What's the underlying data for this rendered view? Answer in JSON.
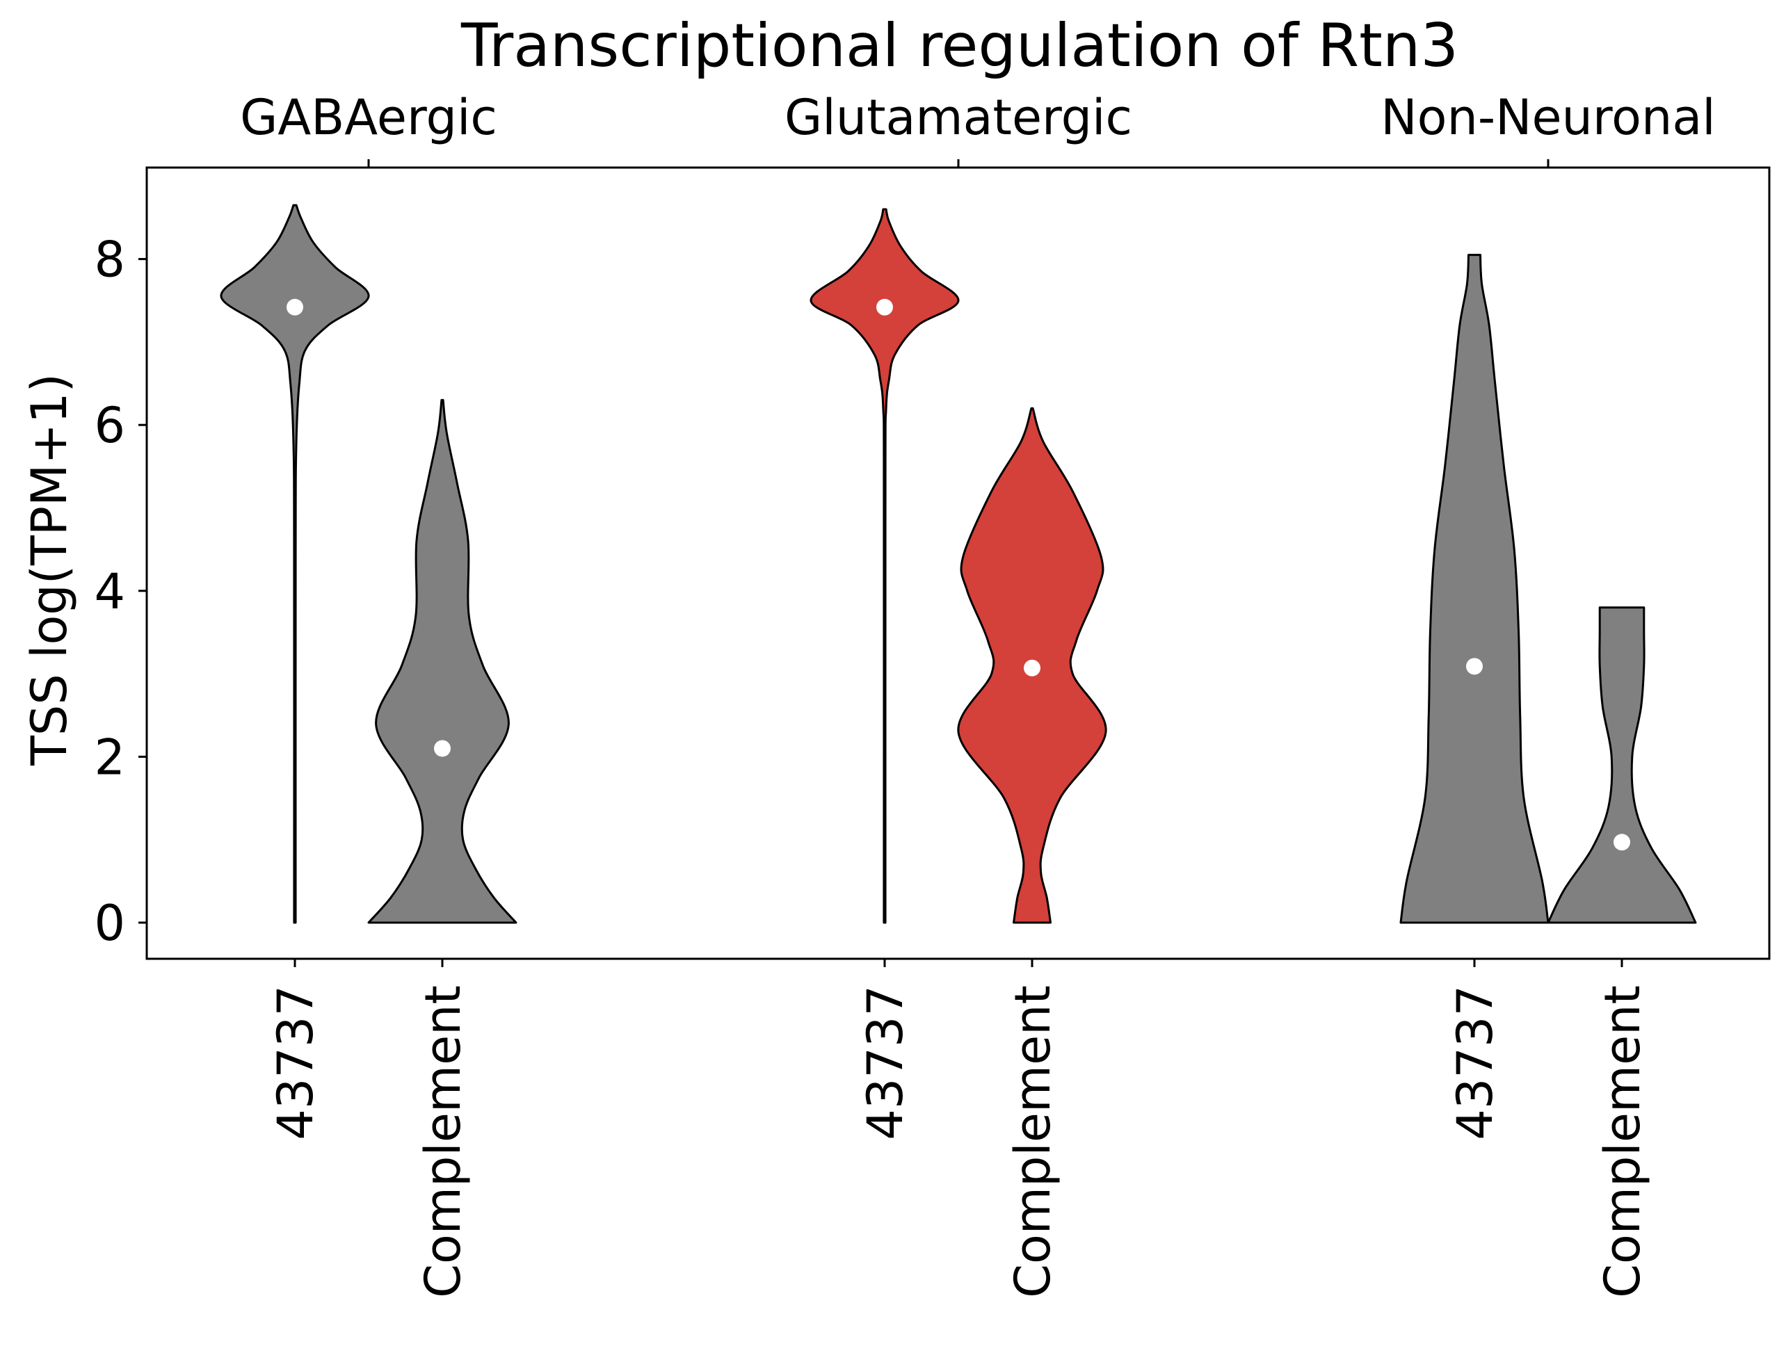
{
  "chart_data": {
    "type": "violin",
    "title": "Transcriptional regulation of Rtn3",
    "ylabel": "TSS log(TPM+1)",
    "xlabel": "",
    "ylim": [
      -0.45,
      9.1
    ],
    "yticks": [
      0,
      2,
      4,
      6,
      8
    ],
    "grid": false,
    "groups": [
      "GABAergic",
      "Glutamatergic",
      "Non-Neuronal"
    ],
    "categories": [
      "43737",
      "Complement",
      "43737",
      "Complement",
      "43737",
      "Complement"
    ],
    "colors": {
      "default": "#808080",
      "highlight": "#d4403a",
      "median": "#ffffff",
      "outline": "#000000"
    },
    "series": [
      {
        "group": "GABAergic",
        "category": "43737",
        "highlight": false,
        "median": 7.42,
        "min": 0.0,
        "max": 8.65,
        "density": [
          [
            0,
            0.01
          ],
          [
            4.5,
            0.01
          ],
          [
            5.8,
            0.02
          ],
          [
            6.5,
            0.06
          ],
          [
            6.9,
            0.14
          ],
          [
            7.2,
            0.45
          ],
          [
            7.55,
            1.0
          ],
          [
            7.9,
            0.55
          ],
          [
            8.2,
            0.25
          ],
          [
            8.5,
            0.08
          ],
          [
            8.65,
            0.02
          ]
        ]
      },
      {
        "group": "GABAergic",
        "category": "Complement",
        "highlight": false,
        "median": 2.1,
        "min": 0.0,
        "max": 6.3,
        "density": [
          [
            0,
            1.0
          ],
          [
            0.3,
            0.7
          ],
          [
            0.65,
            0.45
          ],
          [
            1.0,
            0.28
          ],
          [
            1.35,
            0.3
          ],
          [
            1.75,
            0.5
          ],
          [
            2.4,
            0.9
          ],
          [
            3.1,
            0.55
          ],
          [
            3.7,
            0.36
          ],
          [
            4.6,
            0.35
          ],
          [
            5.3,
            0.2
          ],
          [
            5.9,
            0.06
          ],
          [
            6.3,
            0.01
          ]
        ]
      },
      {
        "group": "Glutamatergic",
        "category": "43737",
        "highlight": true,
        "median": 7.42,
        "min": 0.0,
        "max": 8.6,
        "density": [
          [
            0,
            0.01
          ],
          [
            5.3,
            0.01
          ],
          [
            6.2,
            0.02
          ],
          [
            6.55,
            0.06
          ],
          [
            6.85,
            0.14
          ],
          [
            7.2,
            0.45
          ],
          [
            7.5,
            1.0
          ],
          [
            7.85,
            0.5
          ],
          [
            8.15,
            0.22
          ],
          [
            8.45,
            0.06
          ],
          [
            8.6,
            0.02
          ]
        ]
      },
      {
        "group": "Glutamatergic",
        "category": "Complement",
        "highlight": true,
        "median": 3.07,
        "min": 0.0,
        "max": 6.2,
        "density": [
          [
            0,
            0.25
          ],
          [
            0.3,
            0.2
          ],
          [
            0.6,
            0.12
          ],
          [
            0.9,
            0.15
          ],
          [
            1.5,
            0.38
          ],
          [
            2.3,
            1.0
          ],
          [
            3.0,
            0.55
          ],
          [
            3.4,
            0.6
          ],
          [
            4.0,
            0.88
          ],
          [
            4.4,
            0.94
          ],
          [
            5.2,
            0.55
          ],
          [
            5.8,
            0.15
          ],
          [
            6.2,
            0.01
          ]
        ]
      },
      {
        "group": "Non-Neuronal",
        "category": "43737",
        "highlight": false,
        "median": 3.09,
        "min": 0.0,
        "max": 8.05,
        "density": [
          [
            0,
            1.0
          ],
          [
            0.5,
            0.92
          ],
          [
            1.5,
            0.67
          ],
          [
            2.5,
            0.62
          ],
          [
            3.5,
            0.6
          ],
          [
            4.5,
            0.54
          ],
          [
            5.5,
            0.4
          ],
          [
            6.5,
            0.28
          ],
          [
            7.2,
            0.2
          ],
          [
            7.7,
            0.1
          ],
          [
            8.05,
            0.08
          ]
        ]
      },
      {
        "group": "Non-Neuronal",
        "category": "Complement",
        "highlight": false,
        "median": 0.97,
        "min": 0.0,
        "max": 3.8,
        "density": [
          [
            0,
            1.0
          ],
          [
            0.4,
            0.78
          ],
          [
            0.9,
            0.4
          ],
          [
            1.4,
            0.18
          ],
          [
            2.0,
            0.14
          ],
          [
            2.6,
            0.26
          ],
          [
            3.1,
            0.3
          ],
          [
            3.5,
            0.3
          ],
          [
            3.8,
            0.3
          ]
        ]
      }
    ]
  }
}
